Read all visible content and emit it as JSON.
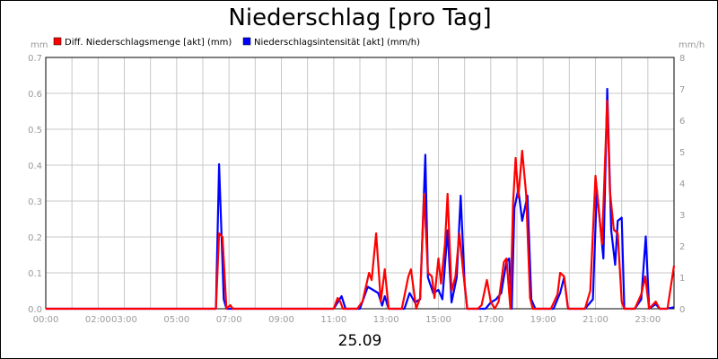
{
  "chart_data": {
    "type": "line",
    "title": "Niederschlag [pro Tag]",
    "xlabel": "25.09",
    "ylabel_left": "mm",
    "ylabel_right": "mm/h",
    "ylim_left": [
      0,
      0.7
    ],
    "ylim_right": [
      0,
      8
    ],
    "xlim": [
      0,
      24
    ],
    "grid": true,
    "legend_placement": "top-left",
    "y_ticks_left": [
      "0.0",
      "0.1",
      "0.2",
      "0.3",
      "0.4",
      "0.5",
      "0.6",
      "0.7"
    ],
    "y_ticks_right": [
      "0",
      "1",
      "2",
      "3",
      "4",
      "5",
      "6",
      "7",
      "8"
    ],
    "x_ticks": [
      {
        "x": 0,
        "label": "00:00"
      },
      {
        "x": 2,
        "label": "02:00"
      },
      {
        "x": 3,
        "label": "03:00"
      },
      {
        "x": 5,
        "label": "05:00"
      },
      {
        "x": 7,
        "label": "07:00"
      },
      {
        "x": 9,
        "label": "09:00"
      },
      {
        "x": 11,
        "label": "11:00"
      },
      {
        "x": 13,
        "label": "13:00"
      },
      {
        "x": 15,
        "label": "15:00"
      },
      {
        "x": 17,
        "label": "17:00"
      },
      {
        "x": 19,
        "label": "19:00"
      },
      {
        "x": 21,
        "label": "21:00"
      },
      {
        "x": 23,
        "label": "23:00"
      }
    ],
    "series": [
      {
        "name": "Diff. Niederschlagsmenge [akt] (mm)",
        "color": "#ff0000",
        "axis": "left",
        "points": [
          [
            0,
            0
          ],
          [
            6.5,
            0
          ],
          [
            6.62,
            0.21
          ],
          [
            6.75,
            0.2
          ],
          [
            6.9,
            0
          ],
          [
            7.05,
            0.01
          ],
          [
            7.15,
            0
          ],
          [
            11.0,
            0
          ],
          [
            11.15,
            0.03
          ],
          [
            11.25,
            0.02
          ],
          [
            11.35,
            0
          ],
          [
            11.9,
            0
          ],
          [
            12.1,
            0.02
          ],
          [
            12.35,
            0.1
          ],
          [
            12.45,
            0.08
          ],
          [
            12.62,
            0.21
          ],
          [
            12.8,
            0.02
          ],
          [
            12.95,
            0.11
          ],
          [
            13.1,
            0
          ],
          [
            13.6,
            0
          ],
          [
            13.85,
            0.09
          ],
          [
            13.95,
            0.11
          ],
          [
            14.15,
            0
          ],
          [
            14.3,
            0.03
          ],
          [
            14.45,
            0.32
          ],
          [
            14.6,
            0.1
          ],
          [
            14.75,
            0.09
          ],
          [
            14.85,
            0.03
          ],
          [
            15.0,
            0.14
          ],
          [
            15.1,
            0.07
          ],
          [
            15.25,
            0.18
          ],
          [
            15.35,
            0.32
          ],
          [
            15.5,
            0.05
          ],
          [
            15.65,
            0.09
          ],
          [
            15.8,
            0.21
          ],
          [
            15.95,
            0.1
          ],
          [
            16.1,
            0
          ],
          [
            16.5,
            0
          ],
          [
            16.65,
            0.01
          ],
          [
            16.85,
            0.08
          ],
          [
            17.0,
            0.02
          ],
          [
            17.15,
            0
          ],
          [
            17.3,
            0.02
          ],
          [
            17.5,
            0.13
          ],
          [
            17.6,
            0.14
          ],
          [
            17.75,
            0
          ],
          [
            17.85,
            0.29
          ],
          [
            17.95,
            0.42
          ],
          [
            18.05,
            0.31
          ],
          [
            18.2,
            0.44
          ],
          [
            18.35,
            0.32
          ],
          [
            18.5,
            0.03
          ],
          [
            18.6,
            0
          ],
          [
            19.3,
            0
          ],
          [
            19.55,
            0.04
          ],
          [
            19.65,
            0.1
          ],
          [
            19.8,
            0.09
          ],
          [
            19.95,
            0
          ],
          [
            20.6,
            0
          ],
          [
            20.8,
            0.05
          ],
          [
            21.0,
            0.37
          ],
          [
            21.25,
            0.18
          ],
          [
            21.45,
            0.58
          ],
          [
            21.55,
            0.33
          ],
          [
            21.7,
            0.22
          ],
          [
            21.85,
            0.21
          ],
          [
            22.0,
            0.02
          ],
          [
            22.1,
            0
          ],
          [
            22.5,
            0
          ],
          [
            22.75,
            0.04
          ],
          [
            22.9,
            0.09
          ],
          [
            23.05,
            0
          ],
          [
            23.3,
            0.02
          ],
          [
            23.45,
            0
          ],
          [
            23.75,
            0
          ],
          [
            24,
            0.12
          ]
        ]
      },
      {
        "name": "Niederschlagsintensität [akt] (mm/h)",
        "color": "#0000ff",
        "axis": "right",
        "points": [
          [
            0,
            0
          ],
          [
            6.5,
            0
          ],
          [
            6.62,
            4.6
          ],
          [
            6.8,
            0.3
          ],
          [
            6.9,
            0
          ],
          [
            11.0,
            0
          ],
          [
            11.15,
            0.2
          ],
          [
            11.3,
            0.4
          ],
          [
            11.45,
            0
          ],
          [
            12.0,
            0
          ],
          [
            12.3,
            0.7
          ],
          [
            12.5,
            0.6
          ],
          [
            12.7,
            0.5
          ],
          [
            12.85,
            0.1
          ],
          [
            12.95,
            0.4
          ],
          [
            13.1,
            0
          ],
          [
            13.7,
            0
          ],
          [
            13.9,
            0.5
          ],
          [
            14.1,
            0.2
          ],
          [
            14.3,
            0.3
          ],
          [
            14.5,
            4.9
          ],
          [
            14.6,
            1.0
          ],
          [
            14.8,
            0.5
          ],
          [
            15.0,
            0.6
          ],
          [
            15.15,
            0.3
          ],
          [
            15.35,
            2.5
          ],
          [
            15.5,
            0.2
          ],
          [
            15.7,
            1.0
          ],
          [
            15.85,
            3.6
          ],
          [
            16.0,
            0.8
          ],
          [
            16.1,
            0
          ],
          [
            16.8,
            0
          ],
          [
            17.0,
            0.2
          ],
          [
            17.2,
            0.3
          ],
          [
            17.4,
            0.5
          ],
          [
            17.6,
            1.5
          ],
          [
            17.7,
            1.6
          ],
          [
            17.8,
            0
          ],
          [
            17.9,
            3.2
          ],
          [
            18.05,
            3.8
          ],
          [
            18.2,
            2.8
          ],
          [
            18.3,
            3.2
          ],
          [
            18.4,
            3.6
          ],
          [
            18.55,
            0.3
          ],
          [
            18.7,
            0
          ],
          [
            19.4,
            0
          ],
          [
            19.65,
            0.5
          ],
          [
            19.8,
            1.0
          ],
          [
            19.95,
            0
          ],
          [
            20.6,
            0
          ],
          [
            20.9,
            0.3
          ],
          [
            21.05,
            3.8
          ],
          [
            21.3,
            1.6
          ],
          [
            21.45,
            7.0
          ],
          [
            21.6,
            2.5
          ],
          [
            21.75,
            1.4
          ],
          [
            21.85,
            2.8
          ],
          [
            22.0,
            2.9
          ],
          [
            22.1,
            0
          ],
          [
            22.5,
            0
          ],
          [
            22.75,
            0.3
          ],
          [
            22.92,
            2.3
          ],
          [
            23.05,
            0
          ],
          [
            23.3,
            0.15
          ],
          [
            23.45,
            0
          ],
          [
            23.7,
            0
          ],
          [
            24,
            0.05
          ]
        ]
      }
    ]
  }
}
